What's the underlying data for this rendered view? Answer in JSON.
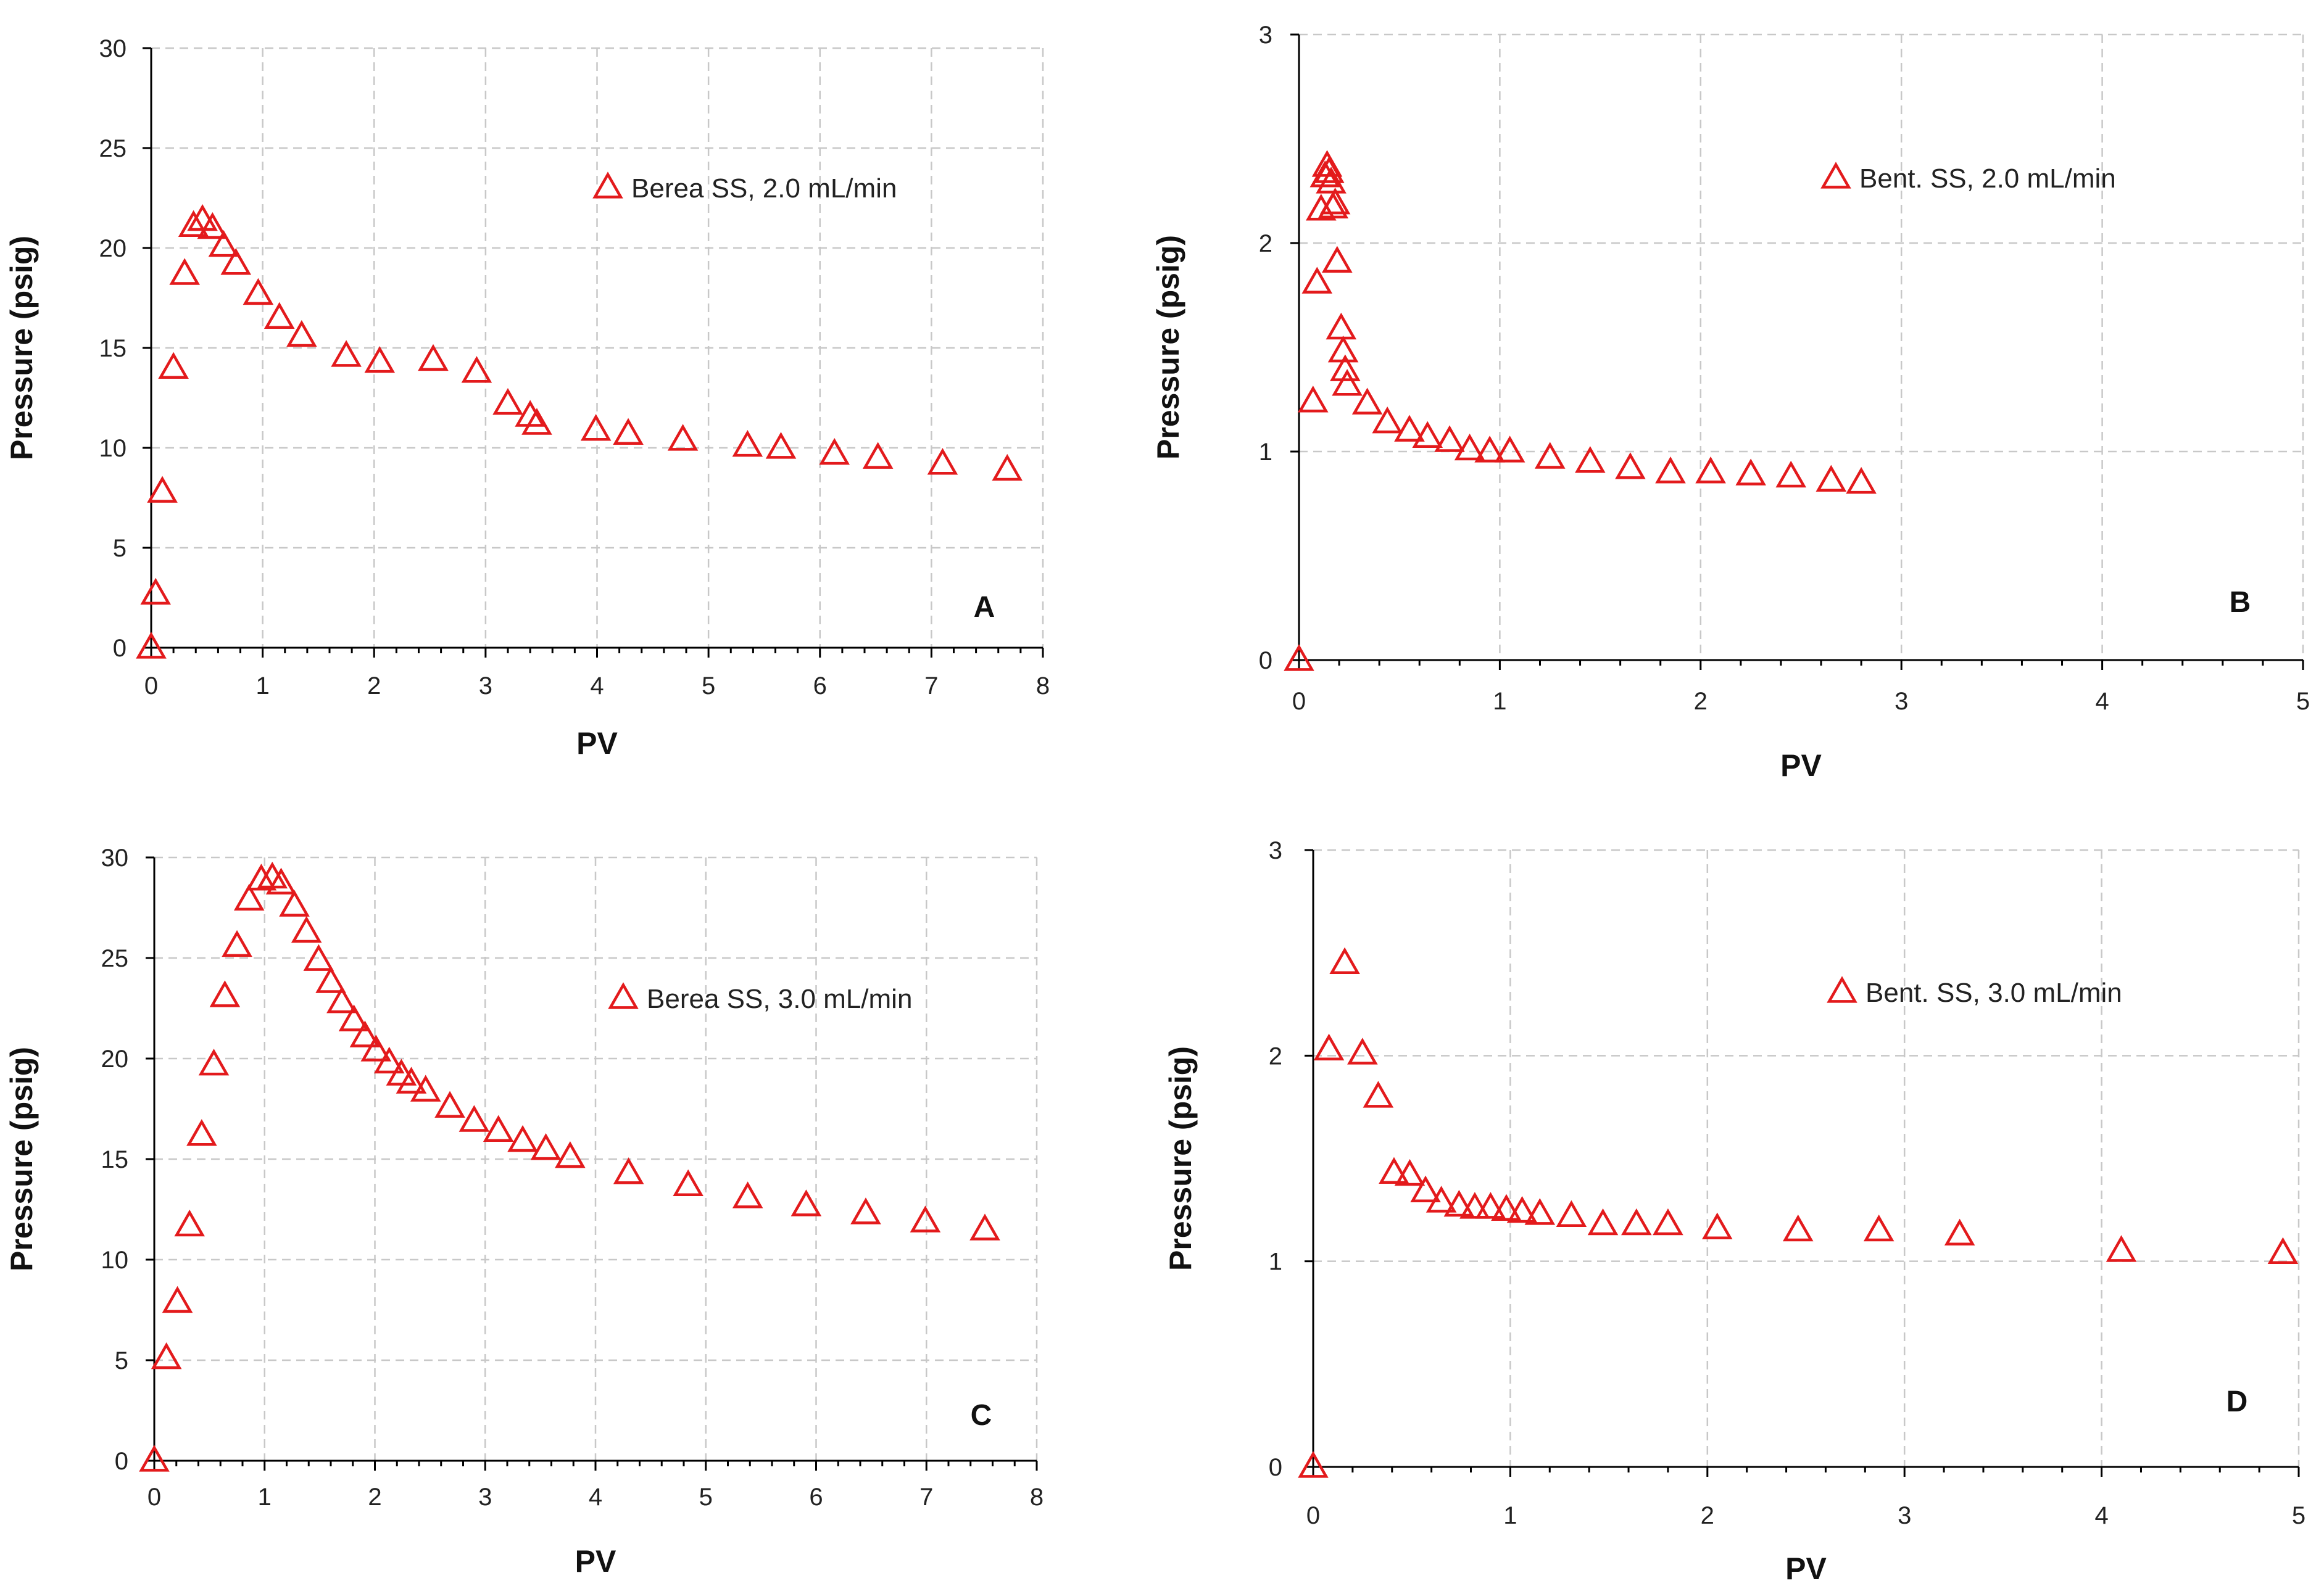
{
  "chart_data": [
    {
      "type": "scatter",
      "panel_label": "A",
      "title": "",
      "xlabel": "PV",
      "ylabel": "Pressure (psig)",
      "xlim": [
        0,
        8
      ],
      "ylim": [
        0,
        30
      ],
      "xticks": [
        "0",
        "1",
        "2",
        "3",
        "4",
        "5",
        "6",
        "7",
        "8"
      ],
      "yticks": [
        "0",
        "5",
        "10",
        "15",
        "20",
        "25",
        "30"
      ],
      "minor_x_ticks": 5,
      "grid": true,
      "legend_position": "top-right",
      "marker": "open-triangle",
      "color": "#e31a1c",
      "series": [
        {
          "name": "Berea SS, 2.0 mL/min",
          "x": [
            0.0,
            0.04,
            0.1,
            0.2,
            0.3,
            0.38,
            0.46,
            0.55,
            0.65,
            0.76,
            0.96,
            1.15,
            1.35,
            1.75,
            2.05,
            2.53,
            2.92,
            3.2,
            3.4,
            3.46,
            3.99,
            4.28,
            4.77,
            5.35,
            5.65,
            6.13,
            6.52,
            7.1,
            7.68
          ],
          "y": [
            0.0,
            2.7,
            7.8,
            14.0,
            18.7,
            21.1,
            21.4,
            21.0,
            20.1,
            19.2,
            17.7,
            16.5,
            15.6,
            14.6,
            14.3,
            14.4,
            13.8,
            12.2,
            11.6,
            11.2,
            10.9,
            10.7,
            10.4,
            10.1,
            10.0,
            9.7,
            9.5,
            9.2,
            8.9
          ]
        }
      ]
    },
    {
      "type": "scatter",
      "panel_label": "B",
      "title": "",
      "xlabel": "PV",
      "ylabel": "Pressure (psig)",
      "xlim": [
        0,
        5
      ],
      "ylim": [
        0,
        3
      ],
      "xticks": [
        "0",
        "1",
        "2",
        "3",
        "4",
        "5"
      ],
      "yticks": [
        "0",
        "1",
        "2",
        "3"
      ],
      "minor_x_ticks": 5,
      "grid": true,
      "legend_position": "top-right",
      "marker": "open-triangle",
      "color": "#e31a1c",
      "series": [
        {
          "name": "Bent. SS, 2.0 mL/min",
          "x": [
            0.0,
            0.07,
            0.09,
            0.11,
            0.13,
            0.14,
            0.15,
            0.16,
            0.17,
            0.18,
            0.19,
            0.21,
            0.22,
            0.23,
            0.24,
            0.34,
            0.44,
            0.55,
            0.64,
            0.75,
            0.85,
            0.95,
            1.05,
            1.25,
            1.45,
            1.65,
            1.85,
            2.05,
            2.25,
            2.45,
            2.65,
            2.8
          ],
          "y": [
            0.0,
            1.24,
            1.81,
            2.16,
            2.32,
            2.37,
            2.34,
            2.29,
            2.17,
            2.19,
            1.91,
            1.59,
            1.48,
            1.39,
            1.32,
            1.23,
            1.14,
            1.1,
            1.07,
            1.05,
            1.01,
            1.0,
            1.0,
            0.97,
            0.95,
            0.92,
            0.9,
            0.9,
            0.89,
            0.88,
            0.86,
            0.85
          ]
        }
      ]
    },
    {
      "type": "scatter",
      "panel_label": "C",
      "title": "",
      "xlabel": "PV",
      "ylabel": "Pressure (psig)",
      "xlim": [
        0,
        8
      ],
      "ylim": [
        0,
        30
      ],
      "xticks": [
        "0",
        "1",
        "2",
        "3",
        "4",
        "5",
        "6",
        "7",
        "8"
      ],
      "yticks": [
        "0",
        "5",
        "10",
        "15",
        "20",
        "25",
        "30"
      ],
      "minor_x_ticks": 5,
      "grid": true,
      "legend_position": "top-right",
      "marker": "open-triangle",
      "color": "#e31a1c",
      "series": [
        {
          "name": "Berea SS, 3.0 mL/min",
          "x": [
            0.0,
            0.11,
            0.21,
            0.32,
            0.43,
            0.54,
            0.64,
            0.75,
            0.86,
            0.97,
            1.07,
            1.15,
            1.27,
            1.38,
            1.49,
            1.6,
            1.7,
            1.81,
            1.91,
            2.01,
            2.13,
            2.24,
            2.33,
            2.46,
            2.68,
            2.9,
            3.12,
            3.34,
            3.55,
            3.77,
            4.3,
            4.84,
            5.38,
            5.91,
            6.45,
            6.99,
            7.53
          ],
          "y": [
            0.0,
            5.1,
            7.9,
            11.7,
            16.2,
            19.7,
            23.1,
            25.6,
            27.9,
            28.9,
            29.0,
            28.7,
            27.6,
            26.3,
            24.9,
            23.8,
            22.8,
            21.9,
            21.1,
            20.4,
            19.8,
            19.2,
            18.8,
            18.4,
            17.6,
            16.9,
            16.4,
            15.9,
            15.5,
            15.1,
            14.3,
            13.7,
            13.1,
            12.7,
            12.3,
            11.9,
            11.5
          ]
        }
      ]
    },
    {
      "type": "scatter",
      "panel_label": "D",
      "title": "",
      "xlabel": "PV",
      "ylabel": "Pressure (psig)",
      "xlim": [
        0,
        5
      ],
      "ylim": [
        0,
        3
      ],
      "xticks": [
        "0",
        "1",
        "2",
        "3",
        "4",
        "5"
      ],
      "yticks": [
        "0",
        "1",
        "2",
        "3"
      ],
      "minor_x_ticks": 5,
      "grid": true,
      "legend_position": "top-right",
      "marker": "open-triangle",
      "color": "#e31a1c",
      "series": [
        {
          "name": "Bent. SS, 3.0 mL/min",
          "x": [
            0.0,
            0.08,
            0.16,
            0.25,
            0.33,
            0.41,
            0.49,
            0.57,
            0.65,
            0.74,
            0.82,
            0.9,
            0.98,
            1.06,
            1.15,
            1.31,
            1.47,
            1.64,
            1.8,
            2.05,
            2.46,
            2.87,
            3.28,
            4.1,
            4.92
          ],
          "y": [
            0.0,
            2.03,
            2.45,
            2.01,
            1.8,
            1.43,
            1.42,
            1.34,
            1.29,
            1.27,
            1.26,
            1.26,
            1.25,
            1.24,
            1.23,
            1.22,
            1.18,
            1.18,
            1.18,
            1.16,
            1.15,
            1.15,
            1.13,
            1.05,
            1.04
          ]
        }
      ]
    }
  ]
}
